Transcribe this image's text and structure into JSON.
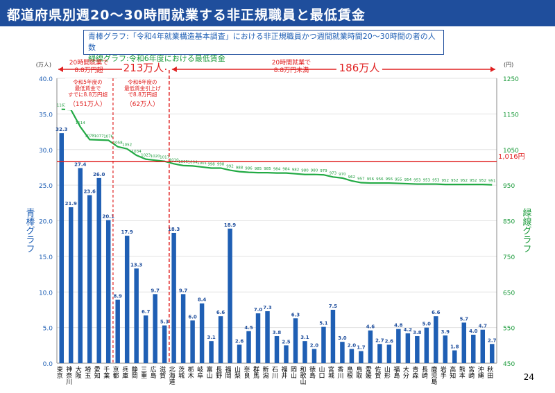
{
  "title": "都道府県別週20～30時間就業する非正規職員と最低賃金",
  "legend": {
    "blue": "青棒グラフ:「令和4年就業構造基本調査」における非正規職員かつ週間就業時間20～30時間の者の人数",
    "green": "緑線グラフ:令和6年度における最低賃金"
  },
  "page_number": "24",
  "chart_data": {
    "type": "bar",
    "categories": [
      "東京",
      "神奈川",
      "大阪",
      "埼玉",
      "愛知",
      "千葉",
      "京都",
      "兵庫",
      "静岡",
      "三重",
      "広島",
      "滋賀",
      "北海道",
      "茨城",
      "栃木",
      "岐阜",
      "富山",
      "長野",
      "福岡",
      "山梨",
      "奈良",
      "群馬",
      "新潟",
      "石川",
      "福井",
      "岡山",
      "和歌山",
      "徳島",
      "山口",
      "宮城",
      "香川",
      "島根",
      "鳥取",
      "愛媛",
      "佐賀",
      "山形",
      "福島",
      "大分",
      "青森",
      "長崎",
      "鹿児島",
      "岩手",
      "高知",
      "熊本",
      "宮崎",
      "沖縄",
      "秋田"
    ],
    "series": [
      {
        "name": "青棒グラフ",
        "axis": "left",
        "values": [
          32.3,
          21.9,
          27.4,
          23.6,
          26.0,
          20.1,
          8.9,
          17.9,
          13.3,
          6.7,
          9.7,
          5.3,
          18.3,
          9.7,
          6.0,
          8.4,
          3.1,
          6.6,
          18.9,
          2.6,
          4.5,
          7.0,
          7.3,
          3.8,
          2.5,
          6.3,
          3.1,
          2.0,
          5.1,
          7.5,
          3.0,
          2.0,
          1.7,
          4.6,
          2.7,
          2.6,
          4.8,
          4.2,
          3.8,
          5.0,
          6.6,
          3.9,
          1.8,
          5.7,
          4.0,
          4.7,
          2.7
        ]
      },
      {
        "name": "緑線グラフ",
        "axis": "right",
        "values": [
          1163,
          1162,
          1114,
          1078,
          1077,
          1076,
          1058,
          1052,
          1034,
          1023,
          1020,
          1017,
          1010,
          1005,
          1004,
          1001,
          998,
          998,
          992,
          988,
          986,
          985,
          985,
          984,
          984,
          982,
          980,
          980,
          979,
          973,
          970,
          962,
          957,
          956,
          956,
          956,
          955,
          954,
          953,
          953,
          953,
          952,
          952,
          952,
          952,
          952,
          951
        ]
      }
    ],
    "y_left": {
      "label": "青棒グラフ",
      "unit": "(万人)",
      "min": 0,
      "max": 40,
      "ticks": [
        "0.0",
        "5.0",
        "10.0",
        "15.0",
        "20.0",
        "25.0",
        "30.0",
        "35.0",
        "40.0"
      ]
    },
    "y_right": {
      "label": "緑線グラフ",
      "unit": "(円)",
      "min": 450,
      "max": 1250,
      "ticks": [
        "450",
        "550",
        "650",
        "750",
        "850",
        "950",
        "1050",
        "1150",
        "1250"
      ]
    },
    "reference_line": {
      "value": 1016,
      "label": "1,016円"
    },
    "groups": {
      "over": {
        "label": "20時間就業で 8.8万円超",
        "total": "213万人"
      },
      "under": {
        "label": "20時間就業で 8.8万円未満",
        "total": "186万人"
      },
      "sub_a": {
        "label": "令和5年度の 最低賃金で すでに8.8万円超",
        "total": "（151万人）"
      },
      "sub_b": {
        "label": "令和6年度の 最低賃金引上げ で8.8万円超",
        "total": "（62万人）"
      }
    },
    "colors": {
      "bar": "#1f5fb4",
      "line": "#22aa44",
      "reference": "#e02020",
      "annotation": "#e02020",
      "title_bar": "#1f4e9c"
    }
  }
}
